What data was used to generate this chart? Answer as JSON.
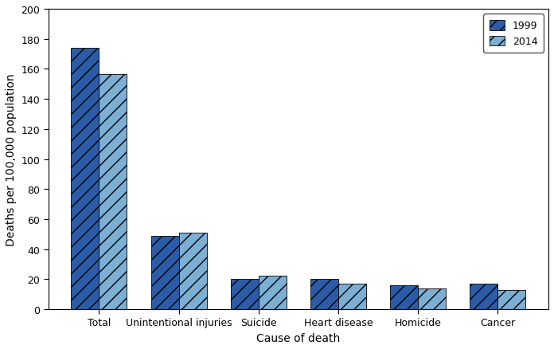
{
  "categories": [
    "Total",
    "Unintentional injuries",
    "Suicide",
    "Heart disease",
    "Homicide",
    "Cancer"
  ],
  "values_1999": [
    174.1,
    48.7,
    20.1,
    20.1,
    15.7,
    17.1
  ],
  "values_2014": [
    156.6,
    51.0,
    22.5,
    17.0,
    13.8,
    12.8
  ],
  "color_1999": "#2b5ca8",
  "color_2014": "#7bafd4",
  "hatch_1999": "//",
  "hatch_2014": "//",
  "ylabel": "Deaths per 100,000 population",
  "xlabel": "Cause of death",
  "ylim": [
    0,
    200
  ],
  "yticks": [
    0,
    20,
    40,
    60,
    80,
    100,
    120,
    140,
    160,
    180,
    200
  ],
  "legend_labels": [
    "1999",
    "2014"
  ],
  "bar_width": 0.35,
  "background_color": "#ffffff",
  "edge_color": "#000000",
  "figsize": [
    6.96,
    4.39
  ],
  "dpi": 100
}
